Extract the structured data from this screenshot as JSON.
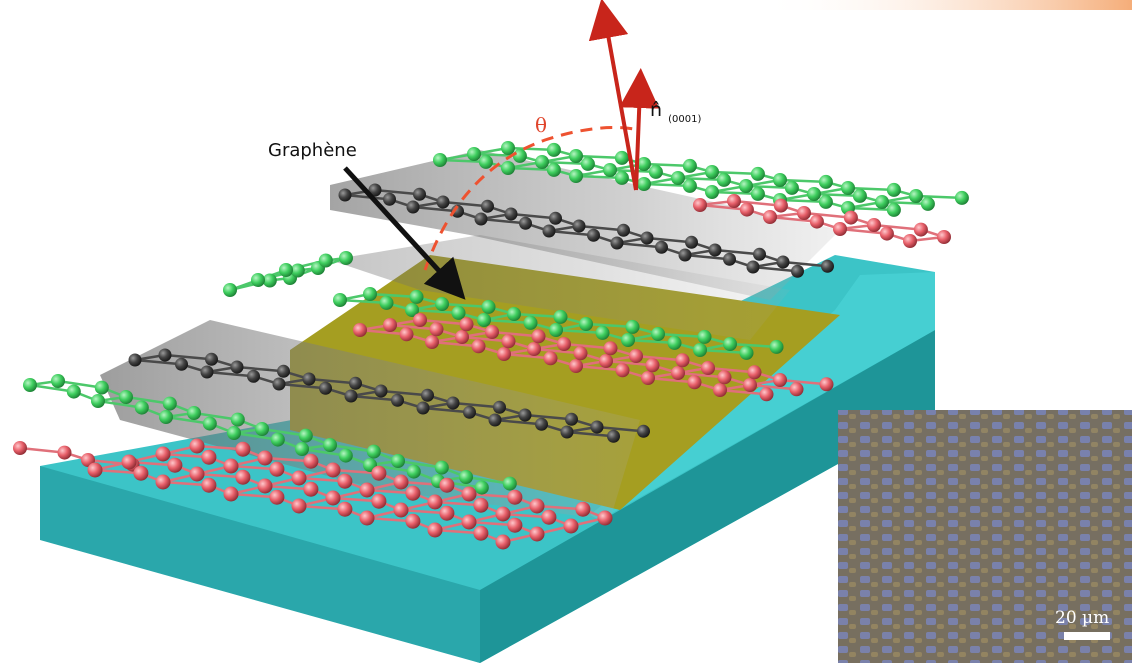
{
  "labels": {
    "graphene": "Graphène",
    "theta": "θ",
    "normal_symbol": "n̂",
    "normal_subscript": "(0001)",
    "scale_bar": "20 µm"
  },
  "colors": {
    "substrate_top": "#3cc4c7",
    "substrate_side": "#1d9a9e",
    "terrace_gold": "#a59e21",
    "atom_green": "#3fcf5f",
    "atom_red": "#e8606a",
    "atom_dark": "#3c3c3c",
    "arrow_red": "#c8251b",
    "theta_dash": "#ee5230"
  }
}
